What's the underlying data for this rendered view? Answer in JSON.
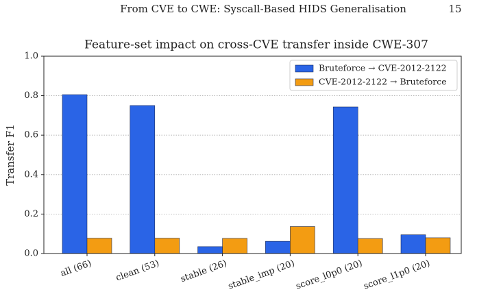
{
  "header": {
    "title": "From CVE to CWE: Syscall-Based HIDS Generalisation",
    "page_number": "15"
  },
  "chart_data": {
    "type": "bar",
    "title": "Feature-set impact on cross-CVE transfer inside CWE-307",
    "y_label": "Transfer F1",
    "categories": [
      "all (66)",
      "clean (53)",
      "stable (26)",
      "stable_imp (20)",
      "score_l0p0 (20)",
      "score_l1p0 (20)"
    ],
    "series": [
      {
        "name": "Bruteforce → CVE-2012-2122",
        "color": "#2a64e6",
        "values": [
          0.805,
          0.75,
          0.035,
          0.062,
          0.743,
          0.095
        ]
      },
      {
        "name": "CVE-2012-2122 → Bruteforce",
        "color": "#f39c12",
        "values": [
          0.078,
          0.078,
          0.077,
          0.137,
          0.076,
          0.08
        ]
      }
    ],
    "ylim": [
      0,
      1
    ],
    "yticks": [
      {
        "value": 0,
        "label": "0.0"
      },
      0.2,
      0.4,
      0.6,
      0.8,
      {
        "value": 1,
        "label": "1.0"
      }
    ],
    "grid": true,
    "legend": "upper right"
  }
}
